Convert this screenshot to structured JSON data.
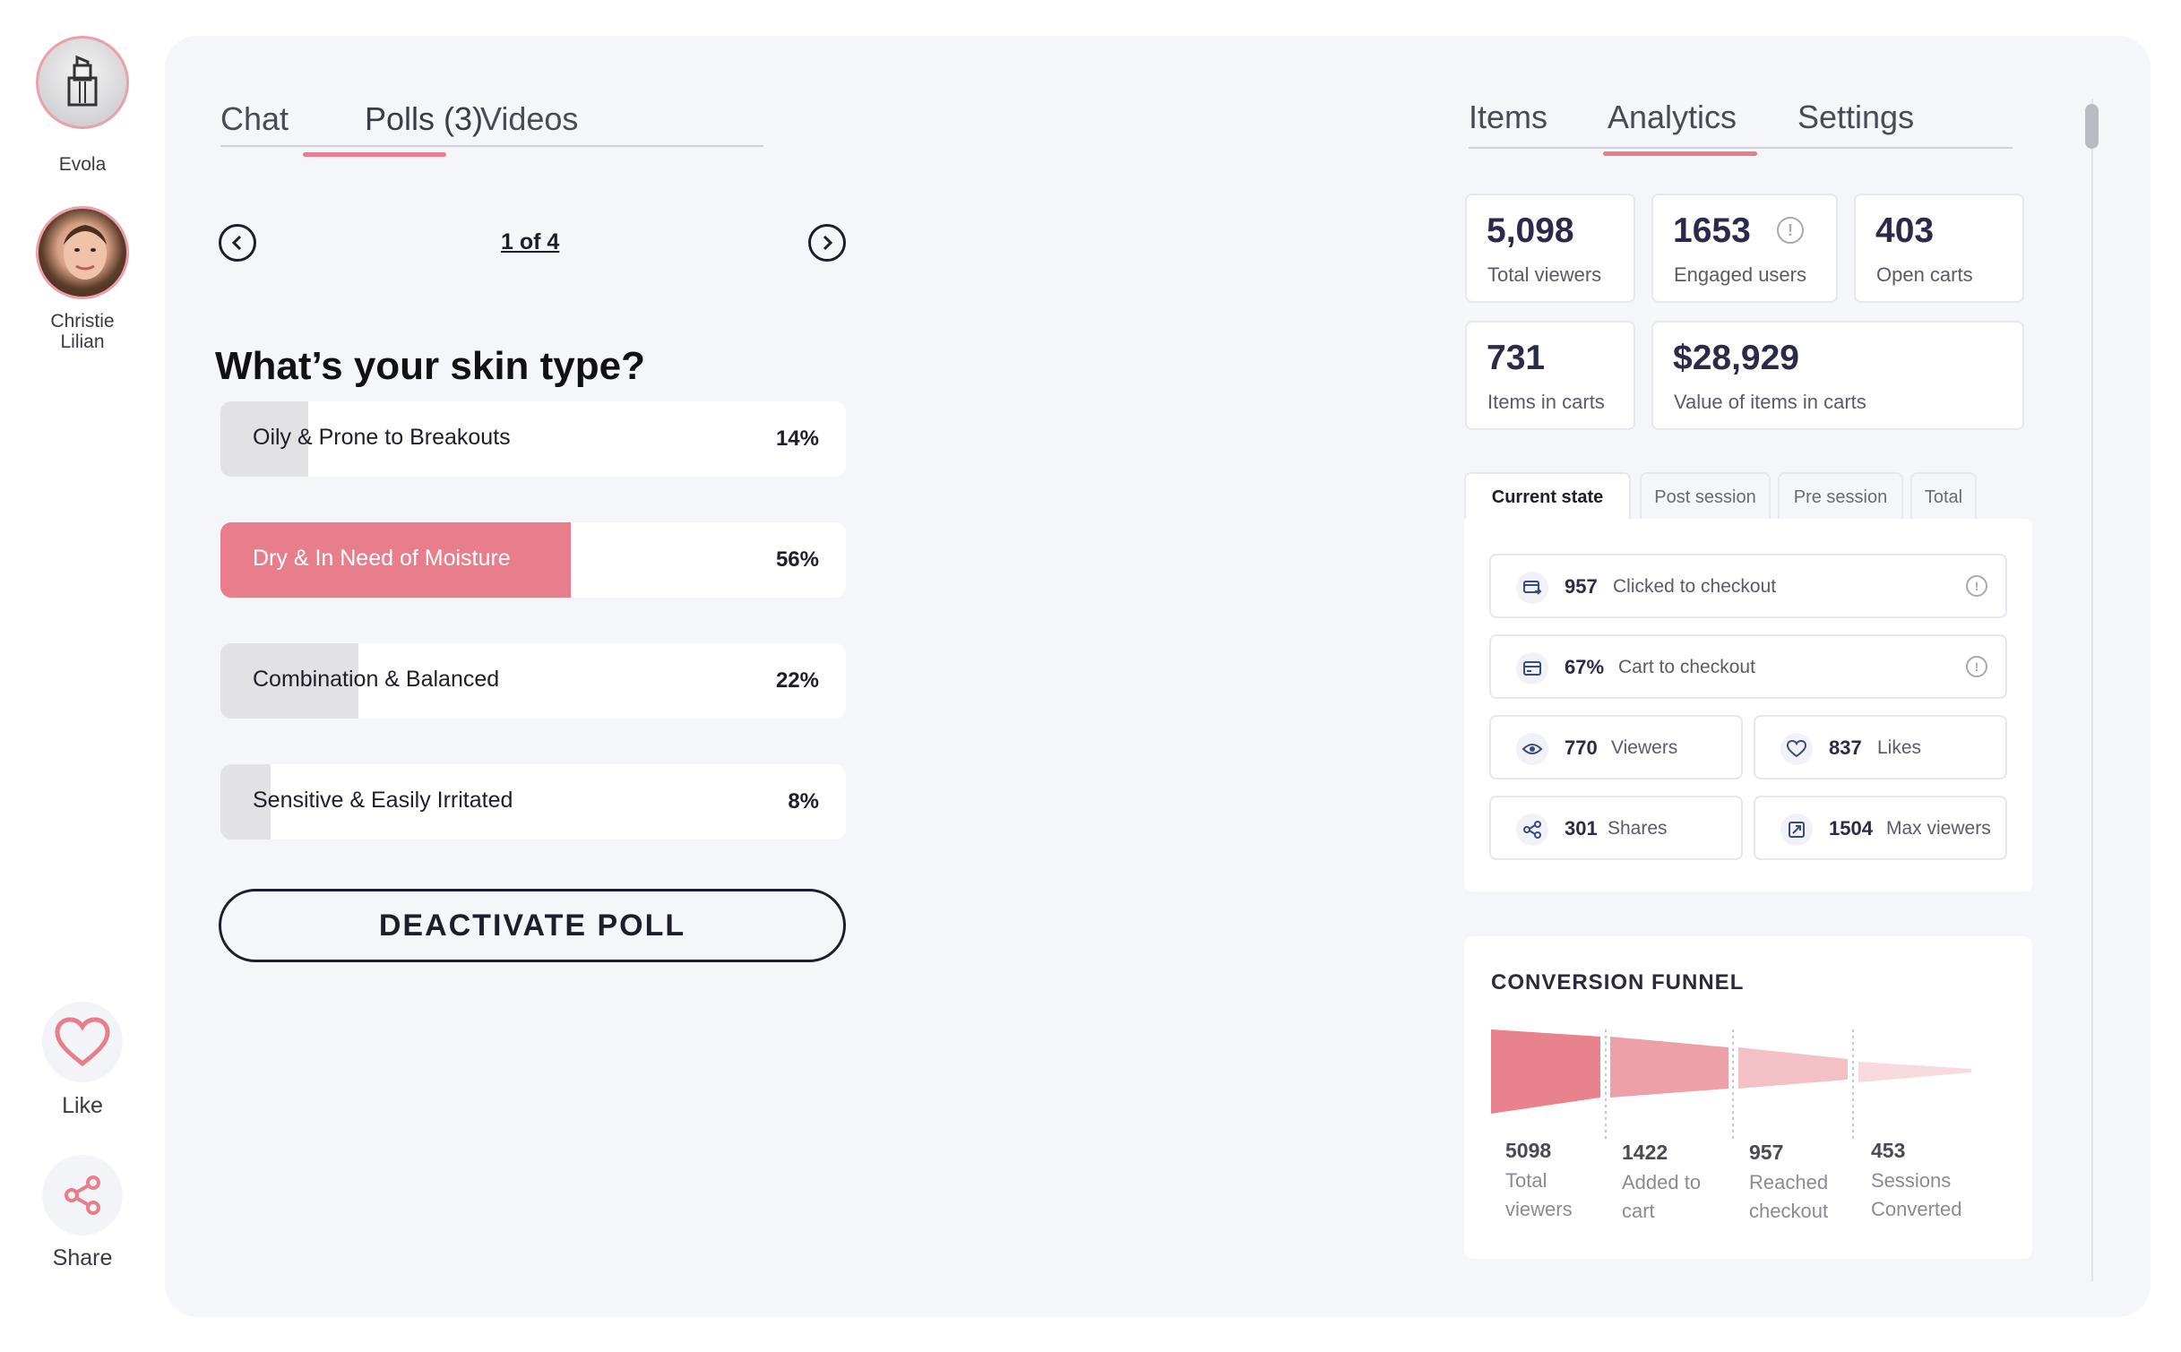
{
  "rail": {
    "brand_name": "Evola",
    "host_name_line1": "Christie",
    "host_name_line2": "Lilian",
    "like_label": "Like",
    "share_label": "Share"
  },
  "poll_tabs": [
    "Chat",
    "Polls (3)",
    "Videos"
  ],
  "pager": {
    "text": "1 of 4"
  },
  "poll": {
    "question": "What’s your skin type?",
    "options": [
      {
        "label": "Oily & Prone to Breakouts",
        "percent_text": "14%",
        "percent": 14,
        "selected": false
      },
      {
        "label": "Dry & In Need of Moisture",
        "percent_text": "56%",
        "percent": 56,
        "selected": true
      },
      {
        "label": "Combination & Balanced",
        "percent_text": "22%",
        "percent": 22,
        "selected": false
      },
      {
        "label": "Sensitive & Easily Irritated",
        "percent_text": "8%",
        "percent": 8,
        "selected": false
      }
    ],
    "deactivate_label": "DEACTIVATE POLL"
  },
  "right_tabs": [
    "Items",
    "Analytics",
    "Settings"
  ],
  "stats": [
    {
      "value": "5,098",
      "label": "Total viewers"
    },
    {
      "value": "1653",
      "label": "Engaged users"
    },
    {
      "value": "403",
      "label": "Open carts"
    },
    {
      "value": "731",
      "label": "Items in carts"
    },
    {
      "value": "$28,929",
      "label": "Value of items in carts"
    }
  ],
  "state_tabs": [
    "Current state",
    "Post session",
    "Pre session",
    "Total"
  ],
  "metrics": [
    {
      "value": "957",
      "label": "Clicked to checkout",
      "icon": "cart-checkout-icon"
    },
    {
      "value": "67%",
      "label": "Cart to checkout",
      "icon": "credit-card-icon"
    },
    {
      "value": "770",
      "label": "Viewers",
      "icon": "eye-icon"
    },
    {
      "value": "837",
      "label": "Likes",
      "icon": "heart-icon"
    },
    {
      "value": "301",
      "label": "Shares",
      "icon": "share-icon"
    },
    {
      "value": "1504",
      "label": "Max viewers",
      "icon": "expand-icon"
    }
  ],
  "funnel": {
    "title": "CONVERSION FUNNEL",
    "stages": [
      {
        "value": "5098",
        "label_line1": "Total",
        "label_line2": "viewers"
      },
      {
        "value": "1422",
        "label_line1": "Added to",
        "label_line2": "cart"
      },
      {
        "value": "957",
        "label_line1": "Reached",
        "label_line2": "checkout"
      },
      {
        "value": "453",
        "label_line1": "Sessions",
        "label_line2": "Converted"
      }
    ]
  },
  "colors": {
    "accent": "#e87e8b",
    "panel_bg": "#f5f6fa",
    "number_text": "#2b2a4a",
    "funnel_1": "#e8828d",
    "funnel_2": "#eda0a8",
    "funnel_3": "#f2c0c5",
    "funnel_4": "#f6dadd"
  }
}
